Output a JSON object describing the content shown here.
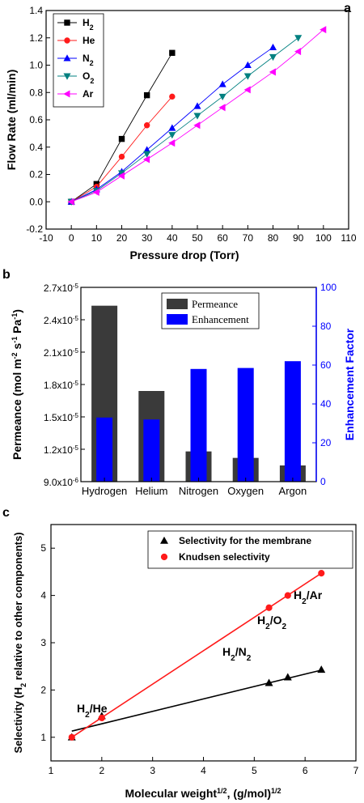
{
  "chart_data": [
    {
      "type": "line",
      "panel_label": "a",
      "xlabel": "Pressure drop (Torr)",
      "ylabel": "Flow Rate (ml/min)",
      "xlim": [
        -10,
        110
      ],
      "ylim": [
        -0.2,
        1.4
      ],
      "x_ticks": [
        "-10",
        "0",
        "10",
        "20",
        "30",
        "40",
        "50",
        "60",
        "70",
        "80",
        "90",
        "100",
        "110"
      ],
      "y_ticks": [
        "-0.2",
        "0.0",
        "0.2",
        "0.4",
        "0.6",
        "0.8",
        "1.0",
        "1.2",
        "1.4"
      ],
      "legend_position": "top-left",
      "series": [
        {
          "name": "H2",
          "name_main": "H",
          "name_sub": "2",
          "color": "#000000",
          "marker": "square",
          "x": [
            0,
            10,
            20,
            30,
            40
          ],
          "y": [
            0,
            0.13,
            0.46,
            0.78,
            1.09
          ]
        },
        {
          "name": "He",
          "name_main": "He",
          "name_sub": "",
          "color": "#ff1a1a",
          "marker": "circle",
          "x": [
            0,
            10,
            20,
            30,
            40
          ],
          "y": [
            0,
            0.11,
            0.33,
            0.56,
            0.77
          ]
        },
        {
          "name": "N2",
          "name_main": "N",
          "name_sub": "2",
          "color": "#0000ff",
          "marker": "triangle-up",
          "x": [
            0,
            10,
            20,
            30,
            40,
            50,
            60,
            70,
            80
          ],
          "y": [
            0,
            0.09,
            0.22,
            0.38,
            0.54,
            0.7,
            0.86,
            1.0,
            1.13
          ]
        },
        {
          "name": "O2",
          "name_main": "O",
          "name_sub": "2",
          "color": "#008080",
          "marker": "triangle-down",
          "x": [
            0,
            10,
            20,
            30,
            40,
            50,
            60,
            70,
            80,
            90
          ],
          "y": [
            0,
            0.08,
            0.21,
            0.35,
            0.49,
            0.63,
            0.77,
            0.92,
            1.06,
            1.2
          ]
        },
        {
          "name": "Ar",
          "name_main": "Ar",
          "name_sub": "",
          "color": "#ff00ff",
          "marker": "triangle-left",
          "x": [
            0,
            10,
            20,
            30,
            40,
            50,
            60,
            70,
            80,
            90,
            100
          ],
          "y": [
            0,
            0.07,
            0.19,
            0.31,
            0.43,
            0.56,
            0.69,
            0.82,
            0.95,
            1.1,
            1.26
          ]
        }
      ]
    },
    {
      "type": "bar",
      "panel_label": "b",
      "categories": [
        "Hydrogen",
        "Helium",
        "Nitrogen",
        "Oxygen",
        "Argon"
      ],
      "ylabel_left": "Permeance (mol m-2 s-1 Pa-1)",
      "ylabel_right": "Enhancement Factor",
      "ylim_left": [
        9e-06,
        2.7e-05
      ],
      "ylim_right": [
        0,
        100
      ],
      "y_ticks_left": [
        {
          "mant": "9.0x10",
          "exp": "-6"
        },
        {
          "mant": "1.2x10",
          "exp": "-5"
        },
        {
          "mant": "1.5x10",
          "exp": "-5"
        },
        {
          "mant": "1.8x10",
          "exp": "-5"
        },
        {
          "mant": "2.1x10",
          "exp": "-5"
        },
        {
          "mant": "2.4x10",
          "exp": "-5"
        },
        {
          "mant": "2.7x10",
          "exp": "-5"
        }
      ],
      "y_ticks_right": [
        "0",
        "20",
        "40",
        "60",
        "80",
        "100"
      ],
      "legend_position": "top-center",
      "series": [
        {
          "name": "Permeance",
          "axis": "left",
          "color": "#3a3a3a",
          "values": [
            2.53e-05,
            1.74e-05,
            1.18e-05,
            1.12e-05,
            1.05e-05
          ]
        },
        {
          "name": "Enhancement",
          "axis": "right",
          "color": "#0000ff",
          "values": [
            33,
            32,
            58,
            58.5,
            62
          ]
        }
      ]
    },
    {
      "type": "scatter",
      "panel_label": "c",
      "xlabel": "Molecular weight1/2, (g/mol)1/2",
      "ylabel": "Selectivity (H2 relative to other components)",
      "xlim": [
        1,
        7
      ],
      "ylim": [
        0.5,
        5.5
      ],
      "x_ticks": [
        "1",
        "2",
        "3",
        "4",
        "5",
        "6",
        "7"
      ],
      "y_ticks": [
        "1",
        "2",
        "3",
        "4",
        "5"
      ],
      "legend_position": "top-right",
      "series": [
        {
          "name": "Selectivity for the membrane",
          "color": "#000000",
          "marker": "triangle-up",
          "x": [
            1.41,
            2.0,
            5.29,
            5.66,
            6.32
          ],
          "y": [
            1.0,
            1.45,
            2.15,
            2.27,
            2.43
          ],
          "fit": {
            "x": [
              1.41,
              6.32
            ],
            "y": [
              1.13,
              2.42
            ]
          }
        },
        {
          "name": "Knudsen selectivity",
          "color": "#ff1a1a",
          "marker": "circle",
          "x": [
            1.41,
            2.0,
            5.29,
            5.66,
            6.32
          ],
          "y": [
            1.0,
            1.41,
            3.74,
            4.0,
            4.47
          ],
          "fit": {
            "x": [
              1.41,
              6.32
            ],
            "y": [
              1.0,
              4.47
            ]
          }
        }
      ],
      "annotations": [
        {
          "main": "H",
          "sub": "2",
          "rest": "/He"
        },
        {
          "main": "H",
          "sub": "2",
          "rest": "/N",
          "sub2": "2"
        },
        {
          "main": "H",
          "sub": "2",
          "rest": "/O",
          "sub2": "2"
        },
        {
          "main": "H",
          "sub": "2",
          "rest": "/Ar"
        }
      ]
    }
  ]
}
